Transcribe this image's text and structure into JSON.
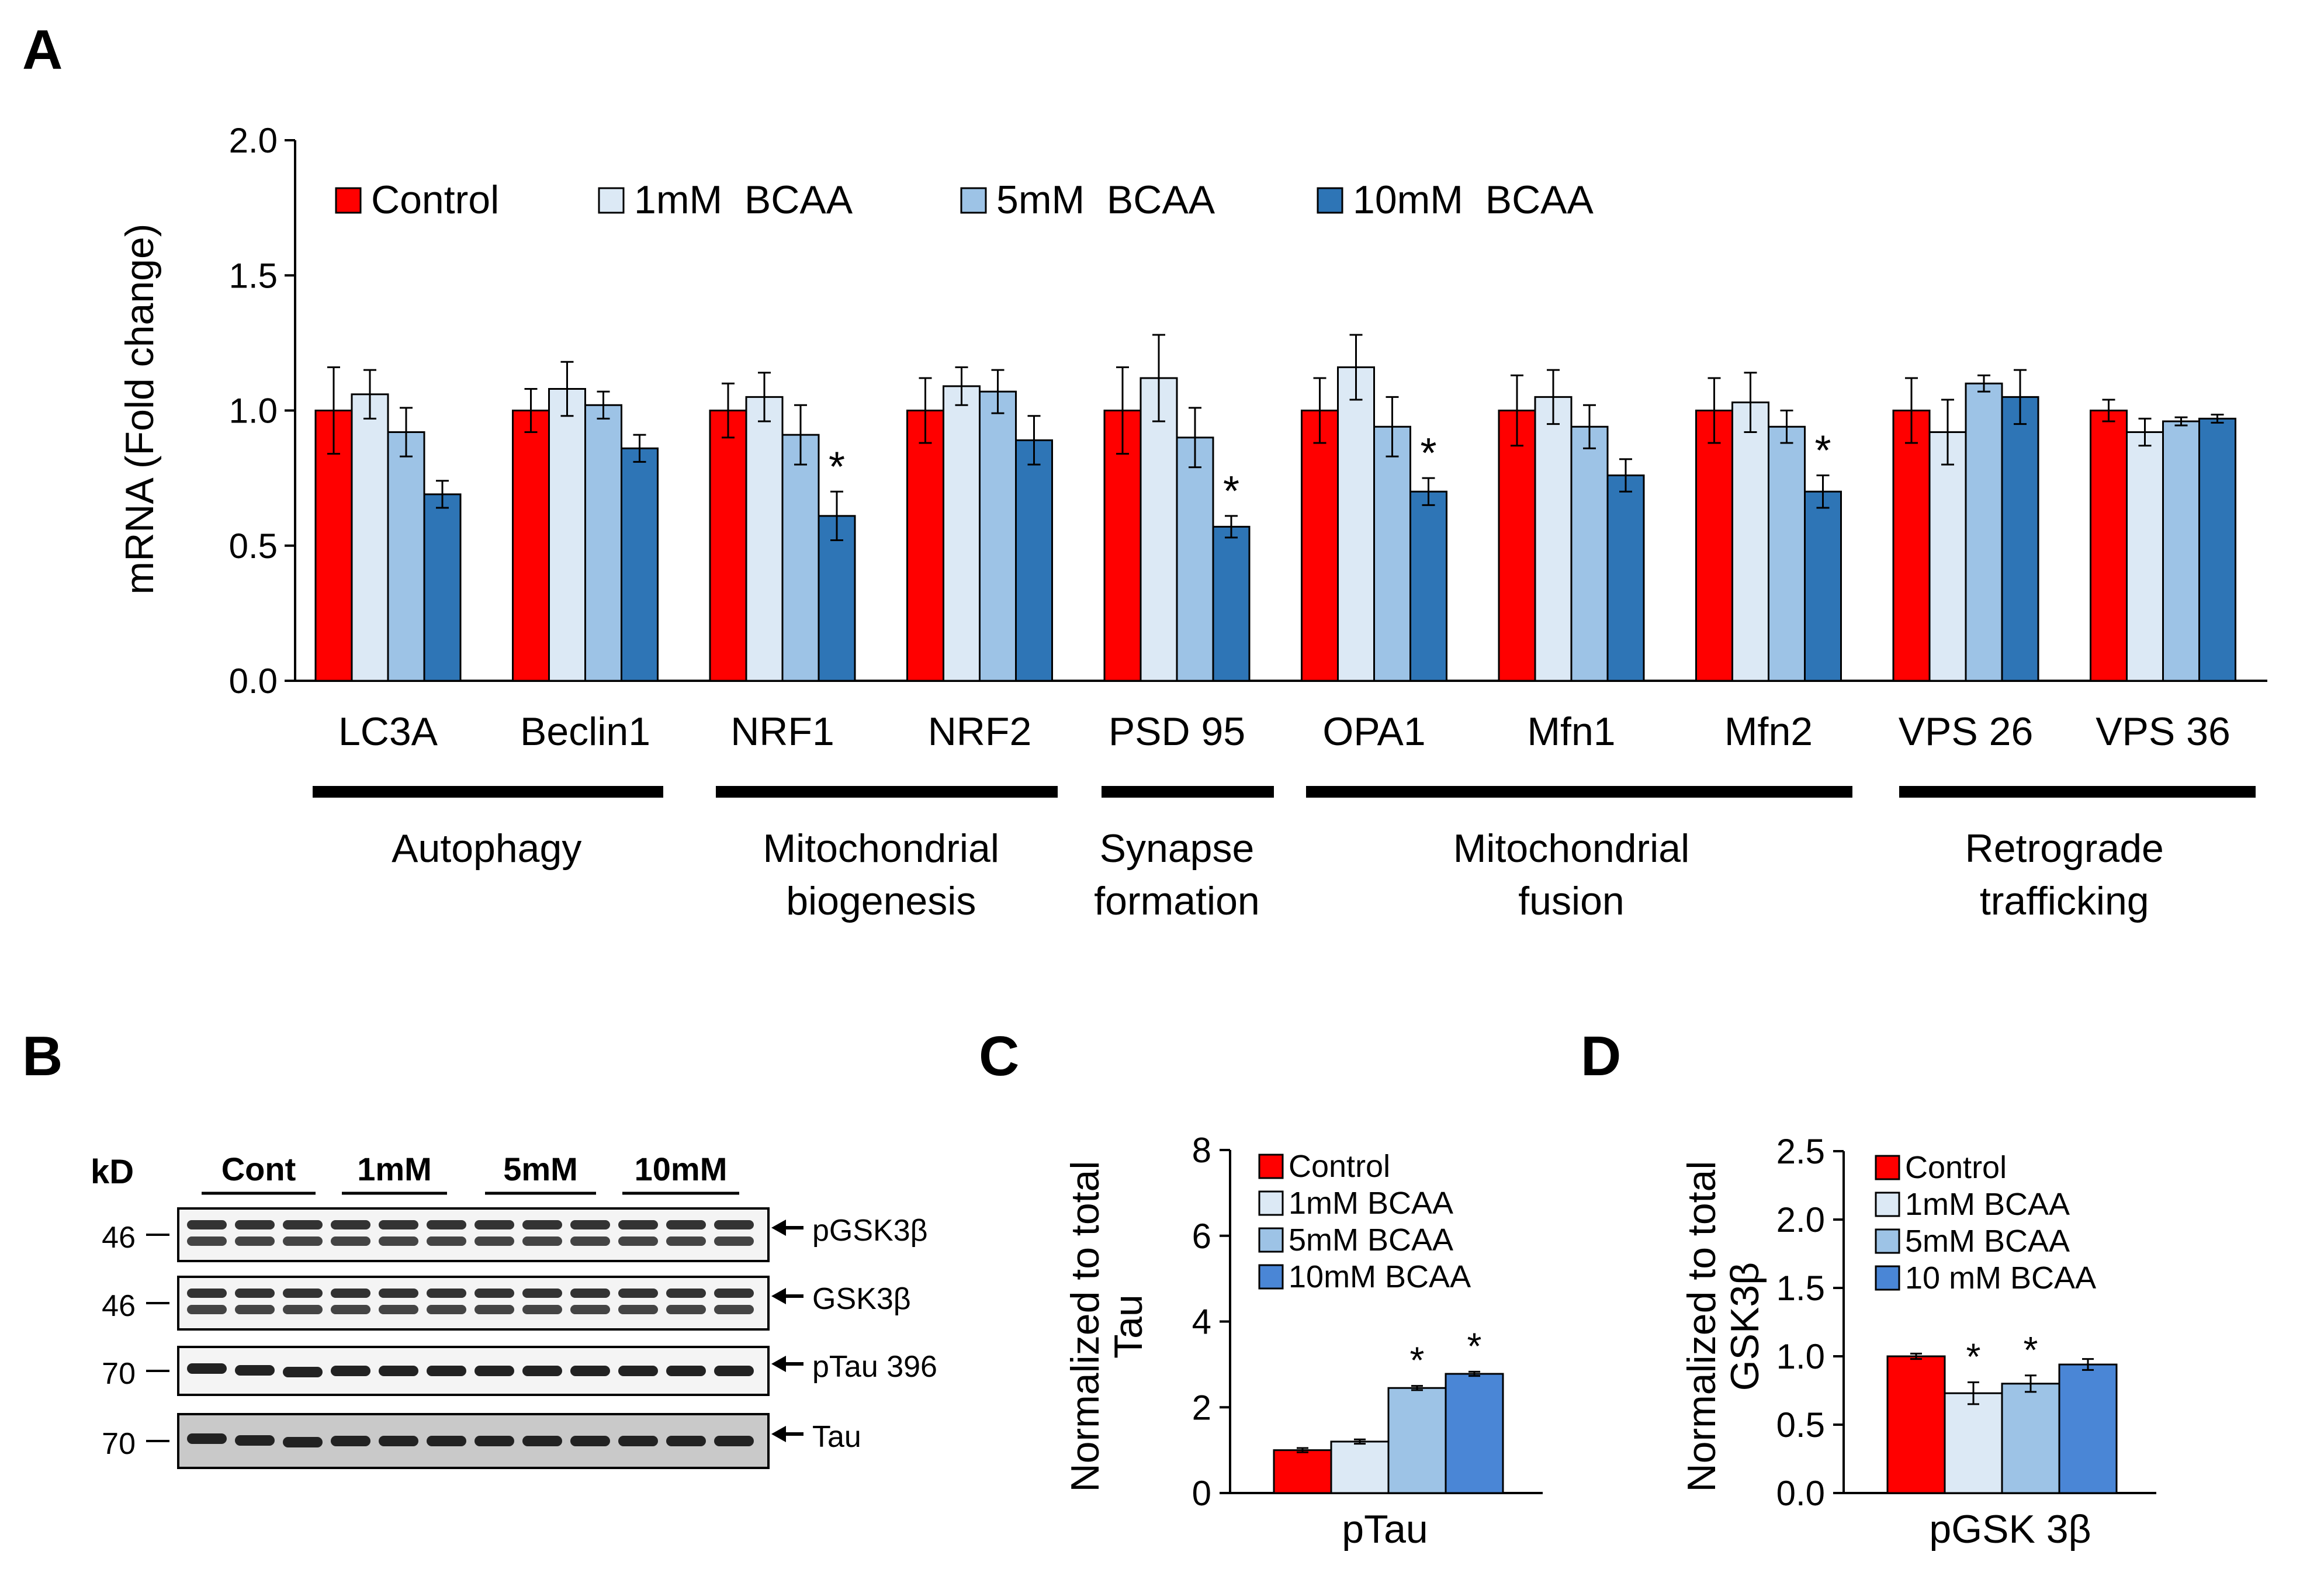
{
  "chart_data": [
    {
      "panel": "A",
      "type": "bar",
      "ylabel": "mRNA  (Fold change)",
      "ylim": [
        0,
        2.0
      ],
      "yticks": [
        "0.0",
        "0.5",
        "1.0",
        "1.5",
        "2.0"
      ],
      "categories": [
        "LC3A",
        "Beclin1",
        "NRF1",
        "NRF2",
        "PSD 95",
        "OPA1",
        "Mfn1",
        "Mfn2",
        "VPS 26",
        "VPS 36"
      ],
      "series": [
        {
          "name": "Control",
          "color": "#ff0000",
          "values": [
            1.0,
            1.0,
            1.0,
            1.0,
            1.0,
            1.0,
            1.0,
            1.0,
            1.0,
            1.0
          ],
          "errors": [
            0.16,
            0.08,
            0.1,
            0.12,
            0.16,
            0.12,
            0.13,
            0.12,
            0.12,
            0.04
          ]
        },
        {
          "name": "1mM  BCAA",
          "color": "#dce9f5",
          "values": [
            1.06,
            1.08,
            1.05,
            1.09,
            1.12,
            1.16,
            1.05,
            1.03,
            0.92,
            0.92
          ],
          "errors": [
            0.09,
            0.1,
            0.09,
            0.07,
            0.16,
            0.12,
            0.1,
            0.11,
            0.12,
            0.05
          ]
        },
        {
          "name": "5mM  BCAA",
          "color": "#9dc3e6",
          "values": [
            0.92,
            1.02,
            0.91,
            1.07,
            0.9,
            0.94,
            0.94,
            0.94,
            1.1,
            0.96
          ],
          "errors": [
            0.09,
            0.05,
            0.11,
            0.08,
            0.11,
            0.11,
            0.08,
            0.06,
            0.03,
            0.015
          ]
        },
        {
          "name": "10mM  BCAA",
          "color": "#2e75b6",
          "values": [
            0.69,
            0.86,
            0.61,
            0.89,
            0.57,
            0.7,
            0.76,
            0.7,
            1.05,
            0.97
          ],
          "errors": [
            0.05,
            0.05,
            0.09,
            0.09,
            0.04,
            0.05,
            0.06,
            0.06,
            0.1,
            0.015
          ]
        }
      ],
      "significance": [
        {
          "category": "NRF1",
          "series": "10mM  BCAA",
          "mark": "*"
        },
        {
          "category": "PSD 95",
          "series": "10mM  BCAA",
          "mark": "*"
        },
        {
          "category": "OPA1",
          "series": "10mM  BCAA",
          "mark": "*"
        },
        {
          "category": "Mfn2",
          "series": "10mM  BCAA",
          "mark": "*"
        }
      ],
      "groups": [
        {
          "label": "Autophagy",
          "categories": [
            "LC3A",
            "Beclin1"
          ]
        },
        {
          "label": "Mitochondrial biogenesis",
          "categories": [
            "NRF1",
            "NRF2"
          ]
        },
        {
          "label": "Synapse formation",
          "categories": [
            "PSD 95"
          ]
        },
        {
          "label": "Mitochondrial fusion",
          "categories": [
            "OPA1",
            "Mfn1",
            "Mfn2"
          ]
        },
        {
          "label": "Retrograde trafficking",
          "categories": [
            "VPS 26",
            "VPS 36"
          ]
        }
      ],
      "legend": "top-left"
    },
    {
      "panel": "C",
      "type": "bar",
      "ylabel": "Normalized to total Tau",
      "xlabel": "pTau",
      "ylim": [
        0,
        8
      ],
      "yticks": [
        "0",
        "2",
        "4",
        "6",
        "8"
      ],
      "series": [
        {
          "name": "Control",
          "color": "#ff0000",
          "value": 1.0,
          "error": 0.05
        },
        {
          "name": "1mM BCAA",
          "color": "#dce9f5",
          "value": 1.2,
          "error": 0.05
        },
        {
          "name": "5mM BCAA",
          "color": "#9dc3e6",
          "value": 2.45,
          "error": 0.05,
          "mark": "*"
        },
        {
          "name": "10mM BCAA",
          "color": "#4a86d6",
          "value": 2.78,
          "error": 0.05,
          "mark": "*"
        }
      ],
      "legend": "top-left"
    },
    {
      "panel": "D",
      "type": "bar",
      "ylabel": "Normalized to total GSK3β",
      "xlabel": "pGSK 3β",
      "ylim": [
        0,
        2.5
      ],
      "yticks": [
        "0.0",
        "0.5",
        "1.0",
        "1.5",
        "2.0",
        "2.5"
      ],
      "series": [
        {
          "name": "Control",
          "color": "#ff0000",
          "value": 1.0,
          "error": 0.02
        },
        {
          "name": "1mM BCAA",
          "color": "#dce9f5",
          "value": 0.73,
          "error": 0.08,
          "mark": "*"
        },
        {
          "name": "5mM BCAA",
          "color": "#9dc3e6",
          "value": 0.8,
          "error": 0.06,
          "mark": "*"
        },
        {
          "name": "10 mM BCAA",
          "color": "#4a86d6",
          "value": 0.94,
          "error": 0.04
        }
      ],
      "legend": "top-left"
    }
  ],
  "panels": {
    "a": "A",
    "b": "B",
    "c": "C",
    "d": "D"
  },
  "blot": {
    "kd_label": "kD",
    "groups": [
      "Cont",
      "1mM",
      "5mM",
      "10mM"
    ],
    "rows": [
      {
        "kd": "46",
        "label": "pGSK3β"
      },
      {
        "kd": "46",
        "label": "GSK3β"
      },
      {
        "kd": "70",
        "label": "pTau 396"
      },
      {
        "kd": "70",
        "label": "Tau"
      }
    ]
  }
}
